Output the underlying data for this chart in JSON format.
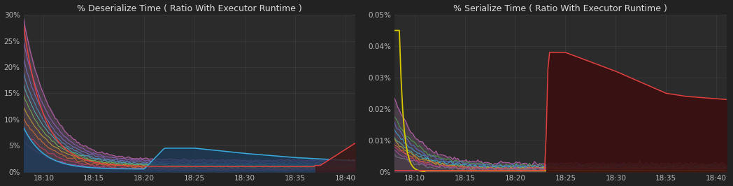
{
  "bg_color": "#222222",
  "plot_bg_color": "#2b2b2b",
  "grid_color": "#3d3d3d",
  "text_color": "#bbbbbb",
  "title_color": "#dddddd",
  "chart1_title": "% Deserialize Time ( Ratio With Executor Runtime )",
  "chart1_ylim": [
    0,
    0.3
  ],
  "chart1_yticks": [
    0,
    0.05,
    0.1,
    0.15,
    0.2,
    0.25,
    0.3
  ],
  "chart1_ytick_labels": [
    "0%",
    "5%",
    "10%",
    "15%",
    "20%",
    "25%",
    "30%"
  ],
  "chart2_title": "% Serialize Time ( Ratio With Executor Runtime )",
  "chart2_ylim": [
    0,
    0.0005
  ],
  "chart2_yticks": [
    0,
    0.0001,
    0.0002,
    0.0003,
    0.0004,
    0.0005
  ],
  "chart2_ytick_labels": [
    "0%",
    "0.01%",
    "0.02%",
    "0.03%",
    "0.04%",
    "0.05%"
  ],
  "xtick_positions": [
    2,
    7,
    12,
    17,
    22,
    27,
    32
  ],
  "xtick_labels": [
    "18:10",
    "18:15",
    "18:20",
    "18:25",
    "18:30",
    "18:35",
    "18:40"
  ],
  "xlim": [
    0,
    33
  ],
  "fill_color_1": "#6a5a6a",
  "fill_color_2": "#5a4a5a",
  "blue_fill": "#1a3a5a",
  "blue_color": "#3aabdd",
  "red_fill_1": "#3a1818",
  "red_color_1": "#e04040",
  "red_fill_2": "#3a1010",
  "red_color_2": "#e04040",
  "yellow_color": "#d8c800"
}
